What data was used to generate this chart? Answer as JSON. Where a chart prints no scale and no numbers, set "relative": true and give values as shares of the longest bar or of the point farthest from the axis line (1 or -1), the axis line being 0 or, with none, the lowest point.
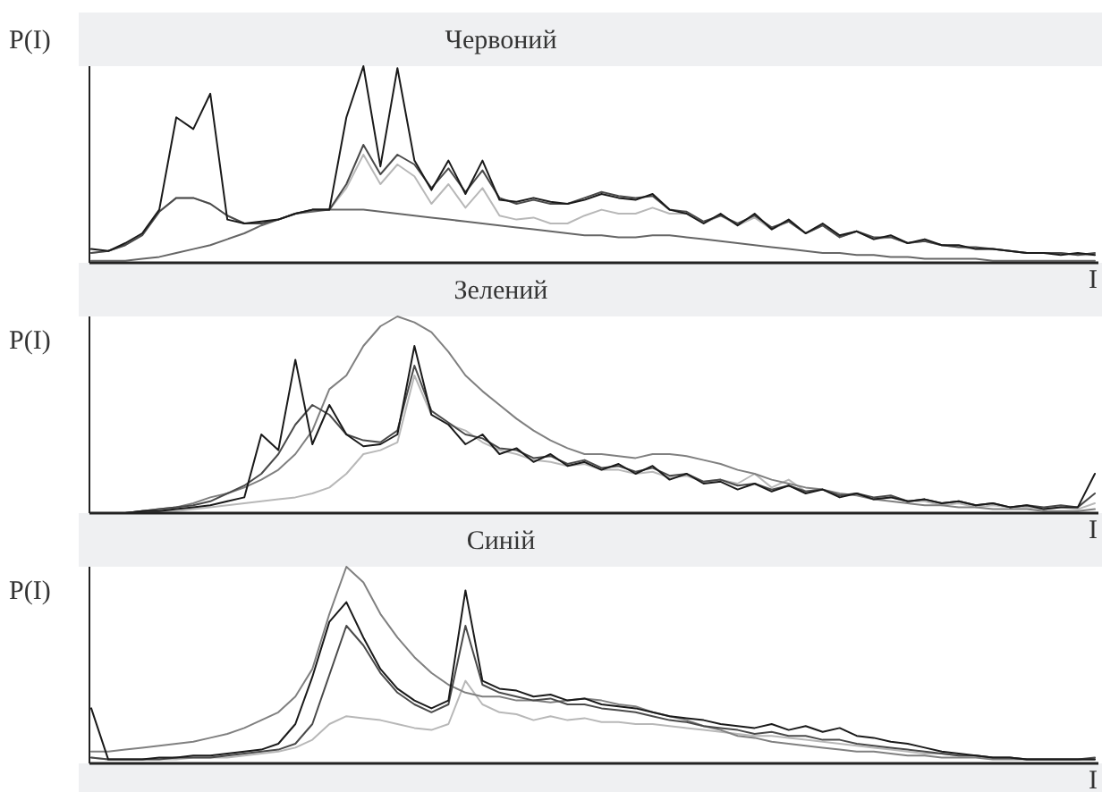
{
  "chart_data": [
    {
      "type": "line",
      "title": "Червоний",
      "xlabel": "I",
      "ylabel": "P(I)",
      "relative": true,
      "categories": [
        null,
        null,
        null,
        null,
        null,
        null,
        null,
        null,
        null,
        null,
        null,
        null,
        null,
        null,
        null,
        null,
        null,
        null,
        null,
        null,
        null,
        null,
        null,
        null,
        null,
        null,
        null,
        null,
        null,
        null,
        null,
        null,
        null,
        null,
        null,
        null,
        null,
        null,
        null,
        null,
        null,
        null,
        null,
        null,
        null,
        null,
        null,
        null,
        null,
        null,
        null,
        null,
        null,
        null,
        null,
        null,
        null,
        null,
        null,
        null
      ],
      "series": [
        {
          "color": "#b8b8b8",
          "values": [
            0.05,
            0.06,
            0.09,
            0.14,
            0.26,
            0.33,
            0.33,
            0.3,
            0.24,
            0.2,
            0.2,
            0.22,
            0.25,
            0.27,
            0.27,
            0.38,
            0.55,
            0.4,
            0.5,
            0.44,
            0.3,
            0.4,
            0.28,
            0.38,
            0.24,
            0.22,
            0.23,
            0.2,
            0.2,
            0.24,
            0.27,
            0.25,
            0.25,
            0.28,
            0.25,
            0.25,
            0.2,
            0.24,
            0.19,
            0.23,
            0.17,
            0.21,
            0.15,
            0.19,
            0.13,
            0.16,
            0.12,
            0.13,
            0.1,
            0.11,
            0.09,
            0.08,
            0.07,
            0.07,
            0.06,
            0.05,
            0.05,
            0.05,
            0.04,
            0.04
          ]
        },
        {
          "color": "#666666",
          "values": [
            0.01,
            0.01,
            0.01,
            0.02,
            0.03,
            0.05,
            0.07,
            0.09,
            0.12,
            0.15,
            0.19,
            0.22,
            0.25,
            0.26,
            0.27,
            0.27,
            0.27,
            0.26,
            0.25,
            0.24,
            0.23,
            0.22,
            0.21,
            0.2,
            0.19,
            0.18,
            0.17,
            0.16,
            0.15,
            0.14,
            0.14,
            0.13,
            0.13,
            0.14,
            0.14,
            0.13,
            0.12,
            0.11,
            0.1,
            0.09,
            0.08,
            0.07,
            0.06,
            0.05,
            0.05,
            0.04,
            0.04,
            0.03,
            0.03,
            0.02,
            0.02,
            0.02,
            0.02,
            0.01,
            0.01,
            0.01,
            0.01,
            0.01,
            0.01,
            0.01
          ]
        },
        {
          "color": "#4a4a4a",
          "values": [
            0.05,
            0.06,
            0.09,
            0.14,
            0.26,
            0.33,
            0.33,
            0.3,
            0.24,
            0.2,
            0.2,
            0.22,
            0.25,
            0.27,
            0.27,
            0.4,
            0.6,
            0.45,
            0.55,
            0.5,
            0.38,
            0.48,
            0.36,
            0.47,
            0.33,
            0.3,
            0.32,
            0.3,
            0.3,
            0.33,
            0.36,
            0.34,
            0.33,
            0.34,
            0.27,
            0.26,
            0.21,
            0.24,
            0.2,
            0.24,
            0.18,
            0.21,
            0.15,
            0.19,
            0.13,
            0.16,
            0.13,
            0.13,
            0.1,
            0.11,
            0.09,
            0.08,
            0.08,
            0.07,
            0.06,
            0.05,
            0.05,
            0.05,
            0.04,
            0.05
          ]
        },
        {
          "color": "#1a1a1a",
          "values": [
            0.07,
            0.06,
            0.1,
            0.15,
            0.27,
            0.74,
            0.68,
            0.86,
            0.22,
            0.2,
            0.21,
            0.22,
            0.25,
            0.27,
            0.27,
            0.74,
            1,
            0.49,
            0.99,
            0.52,
            0.37,
            0.52,
            0.35,
            0.52,
            0.32,
            0.31,
            0.33,
            0.31,
            0.3,
            0.32,
            0.35,
            0.33,
            0.32,
            0.35,
            0.27,
            0.25,
            0.2,
            0.25,
            0.19,
            0.25,
            0.17,
            0.22,
            0.15,
            0.2,
            0.14,
            0.16,
            0.12,
            0.14,
            0.1,
            0.12,
            0.09,
            0.09,
            0.07,
            0.07,
            0.06,
            0.05,
            0.05,
            0.04,
            0.05,
            0.04
          ]
        }
      ]
    },
    {
      "type": "line",
      "title": "Зелений",
      "xlabel": "I",
      "ylabel": "P(I)",
      "relative": true,
      "categories": [
        null,
        null,
        null,
        null,
        null,
        null,
        null,
        null,
        null,
        null,
        null,
        null,
        null,
        null,
        null,
        null,
        null,
        null,
        null,
        null,
        null,
        null,
        null,
        null,
        null,
        null,
        null,
        null,
        null,
        null,
        null,
        null,
        null,
        null,
        null,
        null,
        null,
        null,
        null,
        null,
        null,
        null,
        null,
        null,
        null,
        null,
        null,
        null,
        null,
        null,
        null,
        null,
        null,
        null,
        null,
        null,
        null,
        null,
        null,
        null
      ],
      "series": [
        {
          "color": "#b8b8b8",
          "values": [
            0,
            0,
            0,
            0,
            0.01,
            0.01,
            0.02,
            0.03,
            0.04,
            0.05,
            0.06,
            0.07,
            0.08,
            0.1,
            0.13,
            0.2,
            0.3,
            0.32,
            0.36,
            0.7,
            0.5,
            0.45,
            0.42,
            0.36,
            0.32,
            0.3,
            0.27,
            0.26,
            0.24,
            0.25,
            0.22,
            0.22,
            0.2,
            0.21,
            0.18,
            0.19,
            0.16,
            0.17,
            0.15,
            0.2,
            0.13,
            0.17,
            0.11,
            0.12,
            0.09,
            0.1,
            0.07,
            0.08,
            0.06,
            0.06,
            0.04,
            0.05,
            0.03,
            0.04,
            0.03,
            0.03,
            0.02,
            0.03,
            0.02,
            0.05
          ]
        },
        {
          "color": "#808080",
          "values": [
            0,
            0,
            0,
            0.01,
            0.02,
            0.03,
            0.05,
            0.08,
            0.1,
            0.13,
            0.17,
            0.22,
            0.3,
            0.42,
            0.63,
            0.7,
            0.85,
            0.95,
            1,
            0.97,
            0.92,
            0.82,
            0.7,
            0.62,
            0.55,
            0.48,
            0.42,
            0.37,
            0.33,
            0.3,
            0.3,
            0.29,
            0.28,
            0.3,
            0.3,
            0.29,
            0.27,
            0.25,
            0.22,
            0.2,
            0.17,
            0.15,
            0.13,
            0.12,
            0.1,
            0.09,
            0.07,
            0.06,
            0.05,
            0.04,
            0.04,
            0.03,
            0.03,
            0.02,
            0.02,
            0.02,
            0.01,
            0.01,
            0.01,
            0.02
          ]
        },
        {
          "color": "#4a4a4a",
          "values": [
            0,
            0,
            0,
            0.01,
            0.02,
            0.03,
            0.04,
            0.06,
            0.1,
            0.14,
            0.2,
            0.3,
            0.45,
            0.55,
            0.5,
            0.4,
            0.37,
            0.36,
            0.42,
            0.75,
            0.52,
            0.46,
            0.4,
            0.38,
            0.33,
            0.32,
            0.28,
            0.29,
            0.25,
            0.27,
            0.23,
            0.24,
            0.21,
            0.23,
            0.19,
            0.2,
            0.16,
            0.17,
            0.14,
            0.15,
            0.12,
            0.14,
            0.11,
            0.12,
            0.09,
            0.1,
            0.08,
            0.09,
            0.06,
            0.07,
            0.05,
            0.06,
            0.04,
            0.05,
            0.03,
            0.04,
            0.03,
            0.04,
            0.03,
            0.1
          ]
        },
        {
          "color": "#1a1a1a",
          "values": [
            0,
            0,
            0,
            0.01,
            0.01,
            0.02,
            0.03,
            0.04,
            0.06,
            0.08,
            0.4,
            0.32,
            0.78,
            0.35,
            0.55,
            0.4,
            0.34,
            0.35,
            0.4,
            0.85,
            0.5,
            0.45,
            0.35,
            0.4,
            0.3,
            0.33,
            0.26,
            0.3,
            0.24,
            0.26,
            0.22,
            0.25,
            0.2,
            0.24,
            0.17,
            0.2,
            0.15,
            0.16,
            0.12,
            0.15,
            0.11,
            0.14,
            0.1,
            0.12,
            0.08,
            0.1,
            0.07,
            0.08,
            0.06,
            0.07,
            0.05,
            0.06,
            0.04,
            0.05,
            0.03,
            0.04,
            0.02,
            0.03,
            0.03,
            0.2
          ]
        }
      ]
    },
    {
      "type": "line",
      "title": "Синій",
      "xlabel": "I",
      "ylabel": "P(I)",
      "relative": true,
      "categories": [
        null,
        null,
        null,
        null,
        null,
        null,
        null,
        null,
        null,
        null,
        null,
        null,
        null,
        null,
        null,
        null,
        null,
        null,
        null,
        null,
        null,
        null,
        null,
        null,
        null,
        null,
        null,
        null,
        null,
        null,
        null,
        null,
        null,
        null,
        null,
        null,
        null,
        null,
        null,
        null,
        null,
        null,
        null,
        null,
        null,
        null,
        null,
        null,
        null,
        null,
        null,
        null,
        null,
        null,
        null,
        null,
        null,
        null,
        null,
        null
      ],
      "series": [
        {
          "color": "#b8b8b8",
          "values": [
            0.03,
            0.02,
            0.02,
            0.02,
            0.02,
            0.02,
            0.03,
            0.03,
            0.03,
            0.04,
            0.05,
            0.06,
            0.08,
            0.12,
            0.2,
            0.24,
            0.23,
            0.22,
            0.2,
            0.18,
            0.17,
            0.2,
            0.42,
            0.3,
            0.26,
            0.25,
            0.22,
            0.24,
            0.22,
            0.23,
            0.21,
            0.21,
            0.2,
            0.2,
            0.19,
            0.18,
            0.17,
            0.16,
            0.15,
            0.14,
            0.14,
            0.13,
            0.12,
            0.11,
            0.1,
            0.09,
            0.08,
            0.07,
            0.06,
            0.05,
            0.05,
            0.04,
            0.04,
            0.03,
            0.03,
            0.02,
            0.02,
            0.02,
            0.02,
            0.02
          ]
        },
        {
          "color": "#808080",
          "values": [
            0.06,
            0.06,
            0.07,
            0.08,
            0.09,
            0.1,
            0.11,
            0.13,
            0.15,
            0.18,
            0.22,
            0.26,
            0.34,
            0.48,
            0.76,
            1,
            0.92,
            0.76,
            0.64,
            0.54,
            0.46,
            0.4,
            0.36,
            0.34,
            0.34,
            0.32,
            0.32,
            0.31,
            0.32,
            0.33,
            0.32,
            0.3,
            0.29,
            0.26,
            0.24,
            0.22,
            0.19,
            0.17,
            0.14,
            0.13,
            0.11,
            0.1,
            0.09,
            0.08,
            0.07,
            0.06,
            0.06,
            0.05,
            0.04,
            0.04,
            0.03,
            0.03,
            0.03,
            0.02,
            0.02,
            0.02,
            0.02,
            0.02,
            0.02,
            0.02
          ]
        },
        {
          "color": "#4a4a4a",
          "values": [
            0.03,
            0.02,
            0.02,
            0.02,
            0.02,
            0.03,
            0.03,
            0.03,
            0.04,
            0.05,
            0.06,
            0.07,
            0.1,
            0.2,
            0.45,
            0.7,
            0.6,
            0.46,
            0.36,
            0.3,
            0.26,
            0.3,
            0.7,
            0.4,
            0.36,
            0.34,
            0.32,
            0.33,
            0.3,
            0.3,
            0.28,
            0.27,
            0.26,
            0.24,
            0.22,
            0.21,
            0.19,
            0.18,
            0.17,
            0.15,
            0.16,
            0.14,
            0.14,
            0.12,
            0.12,
            0.1,
            0.09,
            0.08,
            0.07,
            0.06,
            0.05,
            0.04,
            0.04,
            0.03,
            0.03,
            0.02,
            0.02,
            0.02,
            0.02,
            0.03
          ]
        },
        {
          "color": "#1a1a1a",
          "values": [
            0.28,
            0.02,
            0.02,
            0.02,
            0.03,
            0.03,
            0.04,
            0.04,
            0.05,
            0.06,
            0.07,
            0.1,
            0.2,
            0.44,
            0.72,
            0.82,
            0.64,
            0.48,
            0.38,
            0.32,
            0.28,
            0.32,
            0.88,
            0.42,
            0.38,
            0.37,
            0.34,
            0.35,
            0.32,
            0.33,
            0.3,
            0.29,
            0.28,
            0.26,
            0.24,
            0.23,
            0.22,
            0.2,
            0.19,
            0.18,
            0.2,
            0.17,
            0.19,
            0.16,
            0.18,
            0.14,
            0.13,
            0.11,
            0.1,
            0.08,
            0.06,
            0.05,
            0.04,
            0.03,
            0.03,
            0.02,
            0.02,
            0.02,
            0.02,
            0.02
          ]
        }
      ]
    }
  ]
}
